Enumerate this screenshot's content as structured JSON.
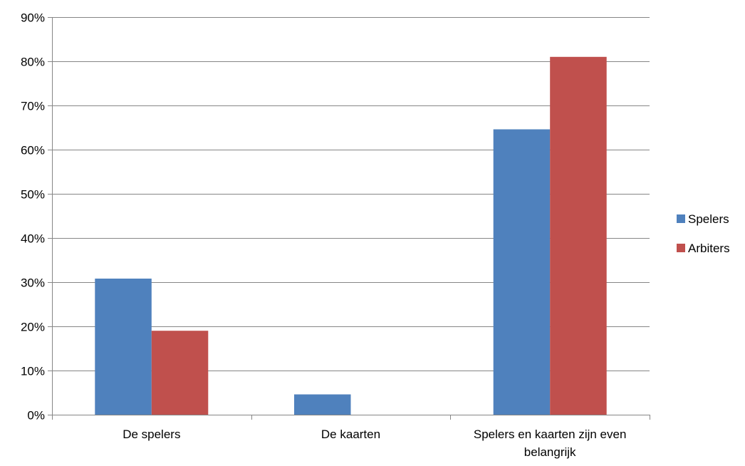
{
  "chart_data": {
    "type": "bar",
    "title": "",
    "xlabel": "",
    "ylabel": "",
    "categories": [
      [
        "De spelers"
      ],
      [
        "De kaarten"
      ],
      [
        "Spelers en kaarten zijn even",
        "belangrijk"
      ]
    ],
    "series": [
      {
        "name": "Spelers",
        "color": "#4F81BD",
        "values": [
          30.8,
          4.6,
          64.6
        ]
      },
      {
        "name": "Arbiters",
        "color": "#C0504D",
        "values": [
          19.0,
          0,
          81.0
        ]
      }
    ],
    "ylim": [
      0,
      90
    ],
    "yticks": [
      0,
      10,
      20,
      30,
      40,
      50,
      60,
      70,
      80,
      90
    ],
    "ytick_labels": [
      "0%",
      "10%",
      "20%",
      "30%",
      "40%",
      "50%",
      "60%",
      "70%",
      "80%",
      "90%"
    ],
    "grid": true,
    "legend_position": "right",
    "colors": {
      "gridline": "#868686",
      "axis": "#868686"
    }
  }
}
